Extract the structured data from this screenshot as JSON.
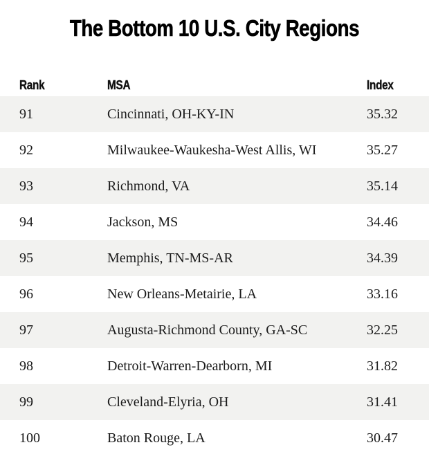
{
  "title": "The Bottom 10 U.S. City Regions",
  "colors": {
    "background": "#ffffff",
    "stripe": "#f2f2f0",
    "heading_text": "#000000",
    "body_text": "#1b1b1b"
  },
  "chart_data": {
    "type": "table",
    "title": "The Bottom 10 U.S. City Regions",
    "columns": [
      "Rank",
      "MSA",
      "Index"
    ],
    "rows": [
      {
        "rank": "91",
        "msa": "Cincinnati, OH-KY-IN",
        "index": "35.32"
      },
      {
        "rank": "92",
        "msa": "Milwaukee-Waukesha-West Allis, WI",
        "index": "35.27"
      },
      {
        "rank": "93",
        "msa": "Richmond, VA",
        "index": "35.14"
      },
      {
        "rank": "94",
        "msa": "Jackson, MS",
        "index": "34.46"
      },
      {
        "rank": "95",
        "msa": "Memphis, TN-MS-AR",
        "index": "34.39"
      },
      {
        "rank": "96",
        "msa": "New Orleans-Metairie, LA",
        "index": "33.16"
      },
      {
        "rank": "97",
        "msa": "Augusta-Richmond County, GA-SC",
        "index": "32.25"
      },
      {
        "rank": "98",
        "msa": "Detroit-Warren-Dearborn, MI",
        "index": "31.82"
      },
      {
        "rank": "99",
        "msa": "Cleveland-Elyria, OH",
        "index": "31.41"
      },
      {
        "rank": "100",
        "msa": "Baton Rouge, LA",
        "index": "30.47"
      }
    ],
    "layout": {
      "striped": true,
      "stripe_rows": "odd (ranks 91, 93, 95, 97, 99)",
      "index_range_shown": [
        30.47,
        35.32
      ]
    }
  }
}
